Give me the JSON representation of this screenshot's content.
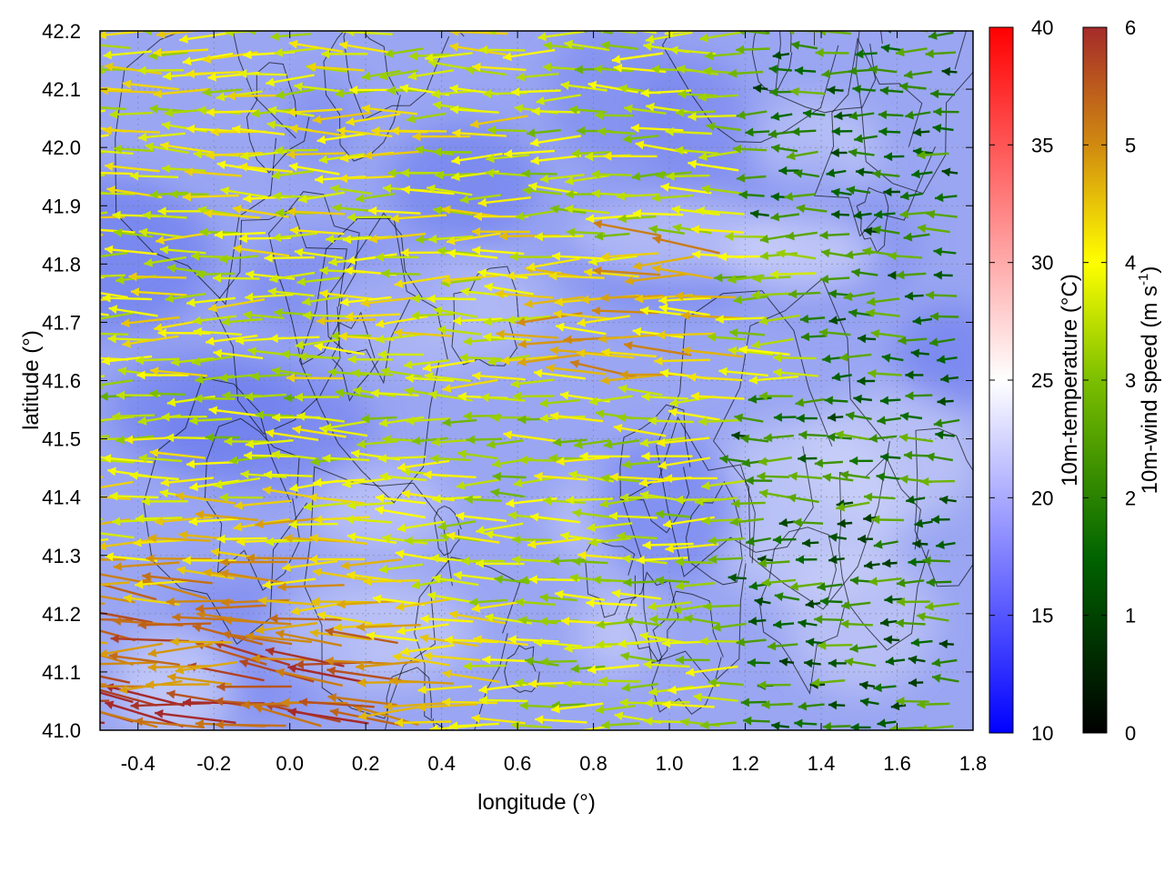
{
  "chart_data": {
    "type": "vector-field",
    "xlabel": "longitude (°)",
    "ylabel": "latitude (°)",
    "xlim": [
      -0.5,
      1.8
    ],
    "ylim": [
      41.0,
      42.2
    ],
    "x_ticks": [
      "-0.4",
      "-0.2",
      "0.0",
      "0.2",
      "0.4",
      "0.6",
      "0.8",
      "1.0",
      "1.2",
      "1.4",
      "1.6",
      "1.8"
    ],
    "y_ticks": [
      "41.0",
      "41.1",
      "41.2",
      "41.3",
      "41.4",
      "41.5",
      "41.6",
      "41.7",
      "41.8",
      "41.9",
      "42.0",
      "42.1",
      "42.2"
    ],
    "grid": true,
    "background_field": {
      "name": "10m-temperature",
      "colorbar_label": "10m-temperature (°C)",
      "range": [
        10,
        40
      ],
      "ticks": [
        "10",
        "15",
        "20",
        "25",
        "30",
        "35",
        "40"
      ],
      "colors": [
        "#0000ff",
        "#ffffff",
        "#ff0000"
      ],
      "typical_values_°C": [
        16,
        22
      ]
    },
    "vector_field": {
      "name": "10m-wind speed",
      "colorbar_label_main": "10m-wind speed (m s",
      "colorbar_label_sup": "-1",
      "colorbar_label_end": ")",
      "range": [
        0,
        6
      ],
      "ticks": [
        "0",
        "1",
        "2",
        "3",
        "4",
        "5",
        "6"
      ],
      "colors": [
        "#000000",
        "#006400",
        "#7cbf00",
        "#ffff00",
        "#d08a10",
        "#a52a2a"
      ],
      "dominant_direction": "westward (easterly wind)",
      "strongest_region": "southwest, lon -0.5 to 0.7, lat 41.0 to 41.5 (about 5–6 m/s)",
      "weakest_region": "east, lon 1.2 to 1.8 (about 0–2 m/s)"
    },
    "contours": {
      "color": "#000000",
      "style": "thin"
    }
  }
}
